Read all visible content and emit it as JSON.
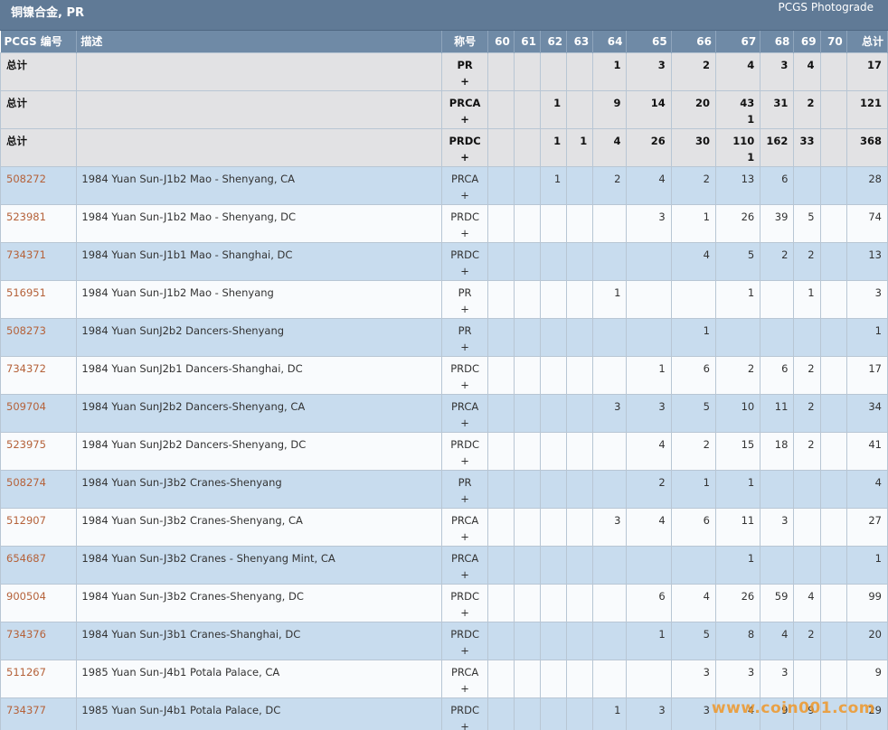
{
  "page": {
    "title": "铜镍合金, PR",
    "source_label": "PCGS Photograde",
    "watermark": "www.coin001.com"
  },
  "table": {
    "headers": {
      "code": "PCGS 编号",
      "desc": "描述",
      "designation": "称号",
      "grades": [
        "60",
        "61",
        "62",
        "63",
        "64",
        "65",
        "66",
        "67",
        "68",
        "69",
        "70"
      ],
      "total": "总计"
    },
    "rows": [
      {
        "type": "total",
        "code": "总计",
        "desc": "",
        "designation": "PR",
        "plus": "+",
        "grades": [
          "",
          "",
          "",
          "",
          "1",
          "3",
          "2",
          "4",
          "3",
          "4",
          ""
        ],
        "sub67": "",
        "total": "17"
      },
      {
        "type": "total",
        "code": "总计",
        "desc": "",
        "designation": "PRCA",
        "plus": "+",
        "grades": [
          "",
          "",
          "1",
          "",
          "9",
          "14",
          "20",
          "43",
          "31",
          "2",
          ""
        ],
        "sub67": "1",
        "total": "121"
      },
      {
        "type": "total",
        "code": "总计",
        "desc": "",
        "designation": "PRDC",
        "plus": "+",
        "grades": [
          "",
          "",
          "1",
          "1",
          "4",
          "26",
          "30",
          "110",
          "162",
          "33",
          ""
        ],
        "sub67": "1",
        "total": "368"
      },
      {
        "type": "coin",
        "code": "508272",
        "desc": "1984 Yuan Sun-J1b2 Mao - Shenyang, CA",
        "designation": "PRCA",
        "plus": "+",
        "grades": [
          "",
          "",
          "1",
          "",
          "2",
          "4",
          "2",
          "13",
          "6",
          "",
          ""
        ],
        "sub67": "",
        "total": "28"
      },
      {
        "type": "coin",
        "code": "523981",
        "desc": "1984 Yuan Sun-J1b2 Mao - Shenyang, DC",
        "designation": "PRDC",
        "plus": "+",
        "grades": [
          "",
          "",
          "",
          "",
          "",
          "3",
          "1",
          "26",
          "39",
          "5",
          ""
        ],
        "sub67": "",
        "total": "74"
      },
      {
        "type": "coin",
        "code": "734371",
        "desc": "1984 Yuan Sun-J1b1 Mao - Shanghai, DC",
        "designation": "PRDC",
        "plus": "+",
        "grades": [
          "",
          "",
          "",
          "",
          "",
          "",
          "4",
          "5",
          "2",
          "2",
          ""
        ],
        "sub67": "",
        "total": "13"
      },
      {
        "type": "coin",
        "code": "516951",
        "desc": "1984 Yuan Sun-J1b2 Mao - Shenyang",
        "designation": "PR",
        "plus": "+",
        "grades": [
          "",
          "",
          "",
          "",
          "1",
          "",
          "",
          "1",
          "",
          "1",
          ""
        ],
        "sub67": "",
        "total": "3"
      },
      {
        "type": "coin",
        "code": "508273",
        "desc": "1984 Yuan SunJ2b2 Dancers-Shenyang",
        "designation": "PR",
        "plus": "+",
        "grades": [
          "",
          "",
          "",
          "",
          "",
          "",
          "1",
          "",
          "",
          "",
          ""
        ],
        "sub67": "",
        "total": "1"
      },
      {
        "type": "coin",
        "code": "734372",
        "desc": "1984 Yuan SunJ2b1 Dancers-Shanghai, DC",
        "designation": "PRDC",
        "plus": "+",
        "grades": [
          "",
          "",
          "",
          "",
          "",
          "1",
          "6",
          "2",
          "6",
          "2",
          ""
        ],
        "sub67": "",
        "total": "17"
      },
      {
        "type": "coin",
        "code": "509704",
        "desc": "1984 Yuan SunJ2b2 Dancers-Shenyang, CA",
        "designation": "PRCA",
        "plus": "+",
        "grades": [
          "",
          "",
          "",
          "",
          "3",
          "3",
          "5",
          "10",
          "11",
          "2",
          ""
        ],
        "sub67": "",
        "total": "34"
      },
      {
        "type": "coin",
        "code": "523975",
        "desc": "1984 Yuan SunJ2b2 Dancers-Shenyang, DC",
        "designation": "PRDC",
        "plus": "+",
        "grades": [
          "",
          "",
          "",
          "",
          "",
          "4",
          "2",
          "15",
          "18",
          "2",
          ""
        ],
        "sub67": "",
        "total": "41"
      },
      {
        "type": "coin",
        "code": "508274",
        "desc": "1984 Yuan Sun-J3b2 Cranes-Shenyang",
        "designation": "PR",
        "plus": "+",
        "grades": [
          "",
          "",
          "",
          "",
          "",
          "2",
          "1",
          "1",
          "",
          "",
          ""
        ],
        "sub67": "",
        "total": "4"
      },
      {
        "type": "coin",
        "code": "512907",
        "desc": "1984 Yuan Sun-J3b2 Cranes-Shenyang, CA",
        "designation": "PRCA",
        "plus": "+",
        "grades": [
          "",
          "",
          "",
          "",
          "3",
          "4",
          "6",
          "11",
          "3",
          "",
          ""
        ],
        "sub67": "",
        "total": "27"
      },
      {
        "type": "coin",
        "code": "654687",
        "desc": "1984 Yuan Sun-J3b2 Cranes - Shenyang Mint, CA",
        "designation": "PRCA",
        "plus": "+",
        "grades": [
          "",
          "",
          "",
          "",
          "",
          "",
          "",
          "1",
          "",
          "",
          ""
        ],
        "sub67": "",
        "total": "1"
      },
      {
        "type": "coin",
        "code": "900504",
        "desc": "1984 Yuan Sun-J3b2 Cranes-Shenyang, DC",
        "designation": "PRDC",
        "plus": "+",
        "grades": [
          "",
          "",
          "",
          "",
          "",
          "6",
          "4",
          "26",
          "59",
          "4",
          ""
        ],
        "sub67": "",
        "total": "99"
      },
      {
        "type": "coin",
        "code": "734376",
        "desc": "1984 Yuan Sun-J3b1 Cranes-Shanghai, DC",
        "designation": "PRDC",
        "plus": "+",
        "grades": [
          "",
          "",
          "",
          "",
          "",
          "1",
          "5",
          "8",
          "4",
          "2",
          ""
        ],
        "sub67": "",
        "total": "20"
      },
      {
        "type": "coin",
        "code": "511267",
        "desc": "1985 Yuan Sun-J4b1 Potala Palace, CA",
        "designation": "PRCA",
        "plus": "+",
        "grades": [
          "",
          "",
          "",
          "",
          "",
          "",
          "3",
          "3",
          "3",
          "",
          ""
        ],
        "sub67": "",
        "total": "9"
      },
      {
        "type": "coin",
        "code": "734377",
        "desc": "1985 Yuan Sun-J4b1 Potala Palace, DC",
        "designation": "PRDC",
        "plus": "+",
        "grades": [
          "",
          "",
          "",
          "",
          "1",
          "3",
          "3",
          "4",
          "9",
          "9",
          ""
        ],
        "sub67": "",
        "total": "29"
      }
    ]
  },
  "colors": {
    "header_bg": "#607a96",
    "table_header_bg": "#6f8aa6",
    "total_row_bg": "#e2e2e4",
    "blue_row_bg": "#c8dcee",
    "white_row_bg": "#f9fbfd",
    "code_link": "#b5623a",
    "watermark": "#ee9628"
  }
}
